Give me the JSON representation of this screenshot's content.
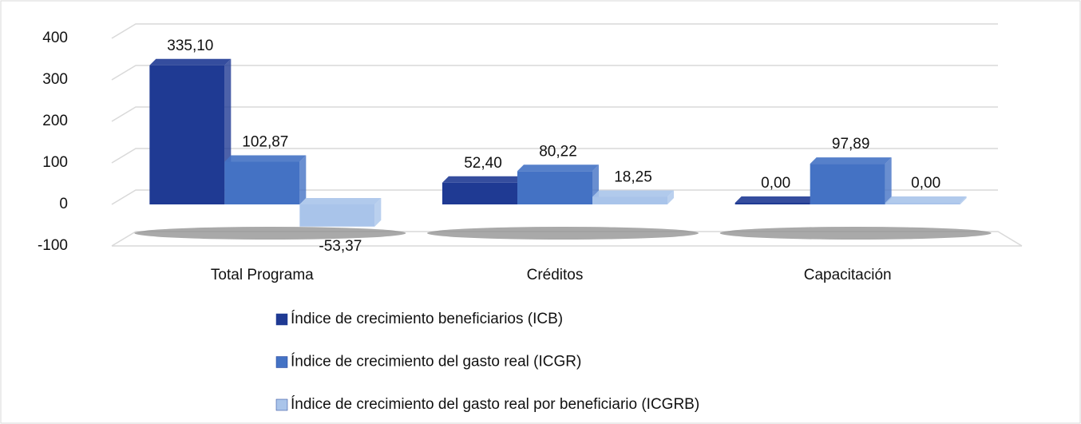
{
  "chart_data": {
    "type": "bar",
    "categories": [
      "Total Programa",
      "Créditos",
      "Capacitación"
    ],
    "series": [
      {
        "name": "Índice de crecimiento beneficiarios (ICB)",
        "color": "#1f3a93",
        "values": [
          335.1,
          52.4,
          0.0
        ],
        "value_labels": [
          "335,10",
          "52,40",
          "0,00"
        ]
      },
      {
        "name": "Índice de crecimiento del gasto real (ICGR)",
        "color": "#4472c4",
        "values": [
          102.87,
          80.22,
          97.89
        ],
        "value_labels": [
          "102,87",
          "80,22",
          "97,89"
        ]
      },
      {
        "name": "Índice de crecimiento del gasto real por beneficiario (ICGRB)",
        "color": "#a9c4ea",
        "values": [
          -53.37,
          18.25,
          0.0
        ],
        "value_labels": [
          "-53,37",
          "18,25",
          "0,00"
        ]
      }
    ],
    "ylim": [
      -100,
      400
    ],
    "yticks": [
      -100,
      0,
      100,
      200,
      300,
      400
    ],
    "grid": true,
    "legend": "bottom"
  }
}
